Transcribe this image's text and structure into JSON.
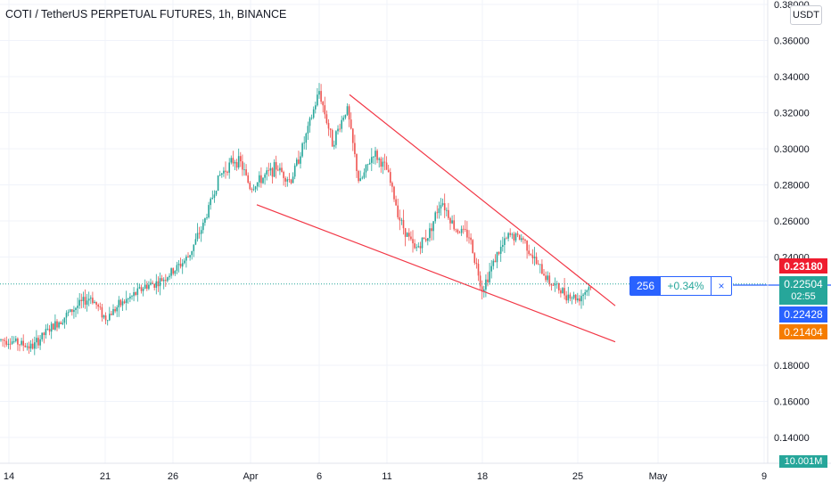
{
  "header": {
    "symbol_title": "COTI / TetherUS PERPETUAL FUTURES, 1h, BINANCE"
  },
  "price_scale": {
    "currency": "USDT"
  },
  "tags": {
    "high_price": "0.23180",
    "last_price": "0.22504",
    "countdown": "02:55",
    "mid_price": "0.22428",
    "low_price": "0.21404",
    "volume": "10.001M"
  },
  "order": {
    "quantity": "256",
    "change": "+0.34%",
    "close_icon": "×"
  },
  "colors": {
    "up": "#26a69a",
    "down": "#ef5350",
    "trendline": "#f23645",
    "last_line": "#26a69a",
    "order_line": "#2962ff"
  },
  "chart_data": {
    "type": "candlestick",
    "title": "COTI / TetherUS PERPETUAL FUTURES, 1h, BINANCE",
    "ylim": [
      0.13,
      0.38
    ],
    "y_ticks": [
      "0.38000",
      "0.36000",
      "0.34000",
      "0.32000",
      "0.30000",
      "0.28000",
      "0.26000",
      "0.24000",
      "0.18000",
      "0.16000",
      "0.14000"
    ],
    "x_ticks": [
      "14",
      "21",
      "26",
      "Apr",
      "6",
      "11",
      "18",
      "25",
      "May",
      "9"
    ],
    "grid": true,
    "price_path": [
      [
        "14",
        0.194
      ],
      [
        "16",
        0.19
      ],
      [
        "17",
        0.198
      ],
      [
        "19",
        0.213
      ],
      [
        "20",
        0.218
      ],
      [
        "21",
        0.206
      ],
      [
        "22",
        0.213
      ],
      [
        "23",
        0.218
      ],
      [
        "24",
        0.224
      ],
      [
        "25",
        0.226
      ],
      [
        "26",
        0.232
      ],
      [
        "27",
        0.24
      ],
      [
        "28",
        0.258
      ],
      [
        "29",
        0.285
      ],
      [
        "30",
        0.294
      ],
      [
        "31",
        0.292
      ],
      [
        "Apr",
        0.278
      ],
      [
        "2",
        0.284
      ],
      [
        "3",
        0.29
      ],
      [
        "4",
        0.282
      ],
      [
        "5",
        0.305
      ],
      [
        "6",
        0.332
      ],
      [
        "7",
        0.303
      ],
      [
        "8",
        0.323
      ],
      [
        "9",
        0.28
      ],
      [
        "10",
        0.298
      ],
      [
        "11",
        0.288
      ],
      [
        "12",
        0.26
      ],
      [
        "13",
        0.244
      ],
      [
        "14",
        0.252
      ],
      [
        "15",
        0.272
      ],
      [
        "16",
        0.256
      ],
      [
        "17",
        0.252
      ],
      [
        "18",
        0.222
      ],
      [
        "19",
        0.24
      ],
      [
        "20",
        0.252
      ],
      [
        "21",
        0.25
      ],
      [
        "22",
        0.236
      ],
      [
        "23",
        0.226
      ],
      [
        "24",
        0.22
      ],
      [
        "25",
        0.217
      ],
      [
        "26",
        0.225
      ]
    ],
    "trendlines": [
      {
        "name": "upper",
        "from": [
          "8",
          0.33
        ],
        "to": [
          "27",
          0.213
        ]
      },
      {
        "name": "lower",
        "from": [
          "Apr",
          0.269
        ],
        "to": [
          "27",
          0.193
        ]
      }
    ],
    "horizontal_lines": [
      {
        "name": "last-price-line",
        "y": 0.22504
      },
      {
        "name": "order-line",
        "y": 0.22504
      }
    ]
  }
}
